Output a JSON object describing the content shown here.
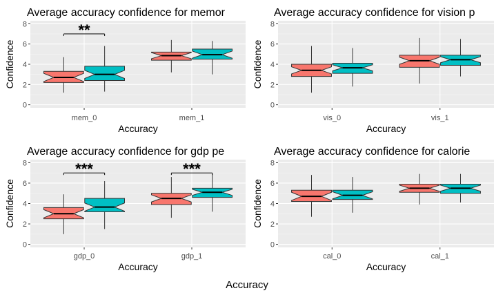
{
  "figure": {
    "footer_label": "Accuracy"
  },
  "colors": {
    "group_a": "#F8766D",
    "group_b": "#00BFC4",
    "panel_bg": "#EBEBEB",
    "grid_major": "#FFFFFF",
    "tick_text": "#4D4D4D"
  },
  "chart_data": [
    {
      "type": "boxplot",
      "title": "Average accuracy confidence for memor",
      "xlabel": "Accuracy",
      "ylabel": "Confidence",
      "categories": [
        "mem_0",
        "mem_1"
      ],
      "ylim": [
        -0.3,
        8.3
      ],
      "yticks": [
        0,
        2,
        4,
        6,
        8
      ],
      "grid": true,
      "notched": true,
      "boxes": [
        {
          "category": "mem_0",
          "group": "a",
          "whisker_low": 1.2,
          "q1": 2.2,
          "median": 2.7,
          "q3": 3.3,
          "whisker_high": 4.7,
          "notch": 0.4
        },
        {
          "category": "mem_0",
          "group": "b",
          "whisker_low": 1.3,
          "q1": 2.4,
          "median": 3.0,
          "q3": 3.8,
          "whisker_high": 5.8,
          "notch": 0.4
        },
        {
          "category": "mem_1",
          "group": "a",
          "whisker_low": 3.2,
          "q1": 4.4,
          "median": 4.85,
          "q3": 5.2,
          "whisker_high": 6.4,
          "notch": 0.3
        },
        {
          "category": "mem_1",
          "group": "b",
          "whisker_low": 3.0,
          "q1": 4.5,
          "median": 4.95,
          "q3": 5.5,
          "whisker_high": 6.3,
          "notch": 0.35
        }
      ],
      "significance": [
        {
          "category": "mem_0",
          "label": "**",
          "y": 7.0
        }
      ]
    },
    {
      "type": "boxplot",
      "title": "Average accuracy confidence for vision p",
      "xlabel": "Accuracy",
      "ylabel": "Confidence",
      "categories": [
        "vis_0",
        "vis_1"
      ],
      "ylim": [
        -0.3,
        8.3
      ],
      "yticks": [
        0,
        2,
        4,
        6,
        8
      ],
      "grid": true,
      "notched": true,
      "boxes": [
        {
          "category": "vis_0",
          "group": "a",
          "whisker_low": 1.2,
          "q1": 2.8,
          "median": 3.4,
          "q3": 4.0,
          "whisker_high": 5.8,
          "notch": 0.35
        },
        {
          "category": "vis_0",
          "group": "b",
          "whisker_low": 1.8,
          "q1": 3.1,
          "median": 3.65,
          "q3": 4.1,
          "whisker_high": 5.6,
          "notch": 0.3
        },
        {
          "category": "vis_1",
          "group": "a",
          "whisker_low": 2.1,
          "q1": 3.7,
          "median": 4.35,
          "q3": 4.9,
          "whisker_high": 6.6,
          "notch": 0.35
        },
        {
          "category": "vis_1",
          "group": "b",
          "whisker_low": 2.8,
          "q1": 3.9,
          "median": 4.45,
          "q3": 4.9,
          "whisker_high": 6.5,
          "notch": 0.3
        }
      ],
      "significance": []
    },
    {
      "type": "boxplot",
      "title": "Average accuracy confidence for gdp pe",
      "xlabel": "Accuracy",
      "ylabel": "Confidence",
      "categories": [
        "gdp_0",
        "gdp_1"
      ],
      "ylim": [
        -0.3,
        8.3
      ],
      "yticks": [
        0,
        2,
        4,
        6,
        8
      ],
      "grid": true,
      "notched": true,
      "boxes": [
        {
          "category": "gdp_0",
          "group": "a",
          "whisker_low": 1.0,
          "q1": 2.5,
          "median": 3.0,
          "q3": 3.6,
          "whisker_high": 4.9,
          "notch": 0.4
        },
        {
          "category": "gdp_0",
          "group": "b",
          "whisker_low": 1.5,
          "q1": 3.2,
          "median": 3.65,
          "q3": 4.5,
          "whisker_high": 6.2,
          "notch": 0.4
        },
        {
          "category": "gdp_1",
          "group": "a",
          "whisker_low": 2.6,
          "q1": 3.9,
          "median": 4.5,
          "q3": 5.0,
          "whisker_high": 6.6,
          "notch": 0.35
        },
        {
          "category": "gdp_1",
          "group": "b",
          "whisker_low": 3.2,
          "q1": 4.6,
          "median": 5.1,
          "q3": 5.5,
          "whisker_high": 6.9,
          "notch": 0.3
        }
      ],
      "significance": [
        {
          "category": "gdp_0",
          "label": "***",
          "y": 7.0
        },
        {
          "category": "gdp_1",
          "label": "***",
          "y": 7.0
        }
      ]
    },
    {
      "type": "boxplot",
      "title": "Average accuracy confidence for calorie",
      "xlabel": "Accuracy",
      "ylabel": "Confidence",
      "categories": [
        "cal_0",
        "cal_1"
      ],
      "ylim": [
        -0.3,
        8.3
      ],
      "yticks": [
        0,
        2,
        4,
        6,
        8
      ],
      "grid": true,
      "notched": true,
      "boxes": [
        {
          "category": "cal_0",
          "group": "a",
          "whisker_low": 2.7,
          "q1": 4.2,
          "median": 4.7,
          "q3": 5.3,
          "whisker_high": 6.8,
          "notch": 0.4
        },
        {
          "category": "cal_0",
          "group": "b",
          "whisker_low": 3.1,
          "q1": 4.4,
          "median": 4.8,
          "q3": 5.3,
          "whisker_high": 6.6,
          "notch": 0.35
        },
        {
          "category": "cal_1",
          "group": "a",
          "whisker_low": 3.9,
          "q1": 5.1,
          "median": 5.5,
          "q3": 5.9,
          "whisker_high": 6.9,
          "notch": 0.3
        },
        {
          "category": "cal_1",
          "group": "b",
          "whisker_low": 4.1,
          "q1": 5.0,
          "median": 5.5,
          "q3": 5.9,
          "whisker_high": 6.9,
          "notch": 0.3
        }
      ],
      "significance": []
    }
  ]
}
